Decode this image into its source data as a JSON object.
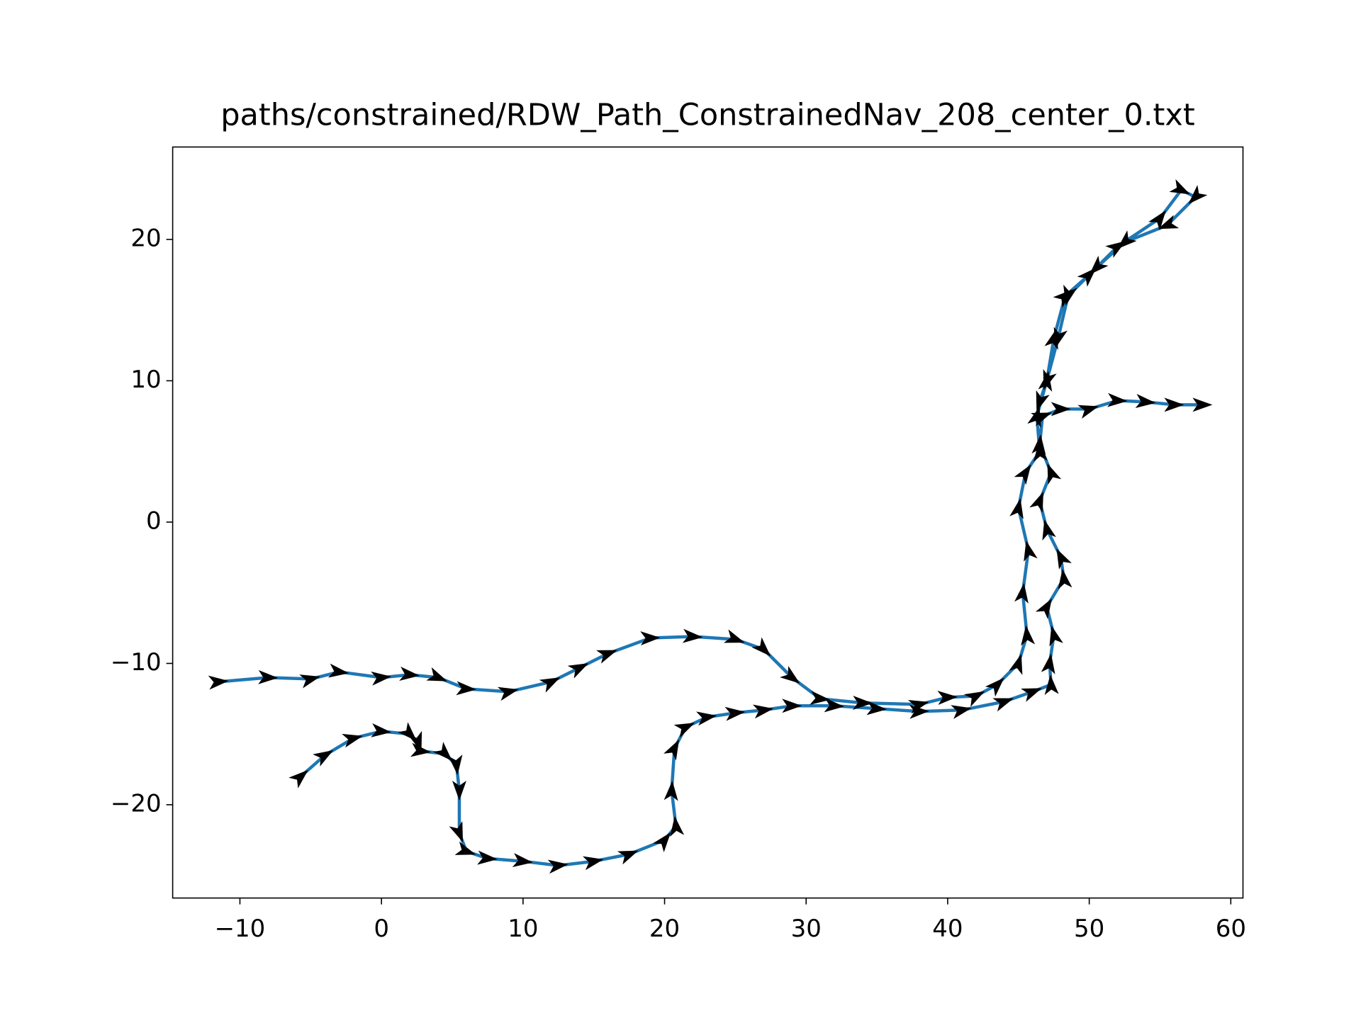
{
  "chart_data": {
    "type": "line",
    "title": "paths/constrained/RDW_Path_ConstrainedNav_208_center_0.txt",
    "xlim": [
      -14.75,
      60.86
    ],
    "ylim": [
      -26.6,
      26.54
    ],
    "xticks": [
      {
        "value": -10,
        "label": "−10"
      },
      0,
      10,
      20,
      30,
      40,
      50,
      60
    ],
    "yticks": [
      {
        "value": -20,
        "label": "−20"
      },
      {
        "value": -10,
        "label": "−10"
      },
      0,
      10,
      20
    ],
    "arrows": true,
    "series": [
      {
        "color": "#1f77b4",
        "x": [
          -5.7,
          -4,
          -2,
          0,
          2,
          2.6,
          2.8,
          4.5,
          5.3,
          5.5,
          5.5,
          6,
          7.5,
          10,
          12.5,
          15,
          17.5,
          20,
          20.8,
          20.5,
          20.7,
          21.5,
          23,
          25,
          27,
          29,
          32,
          35,
          38,
          41,
          44,
          46,
          47.3,
          47.2,
          47.5,
          47,
          48.2,
          48,
          47,
          46.5,
          47.3,
          46.5,
          46.7,
          48,
          50,
          52,
          54,
          56,
          58,
          null,
          -11.5,
          -8,
          -5,
          -3,
          0,
          2,
          4,
          6,
          9,
          12,
          14,
          16,
          19,
          22,
          25,
          27,
          29,
          31,
          34,
          38,
          40,
          42,
          43.5,
          45,
          45.6,
          45.3,
          45.7,
          45,
          45.5,
          46.5,
          46.3,
          47,
          47.5,
          48.3,
          50,
          52,
          55,
          56.5,
          57.5,
          55.5,
          52.5,
          50.5,
          48.5,
          47.8,
          47,
          46.5
        ],
        "values": [
          -18,
          -16.5,
          -15.3,
          -14.8,
          -15,
          -15.6,
          -16.2,
          -16.4,
          -17.2,
          -19,
          -22,
          -23.3,
          -23.8,
          -24,
          -24.3,
          -24,
          -23.5,
          -22.5,
          -21.5,
          -19,
          -16,
          -14.5,
          -13.8,
          -13.5,
          -13.3,
          -13,
          -13,
          -13.2,
          -13.4,
          -13.3,
          -12.7,
          -12,
          -11.5,
          -10,
          -8,
          -6,
          -4,
          -2.5,
          -0.5,
          1.5,
          3.5,
          5.5,
          7.5,
          8,
          8,
          8.6,
          8.5,
          8.3,
          8.3,
          null,
          -11.3,
          -11,
          -11.1,
          -10.6,
          -11,
          -10.8,
          -11,
          -11.8,
          -12,
          -11.3,
          -10.3,
          -9.3,
          -8.2,
          -8.1,
          -8.3,
          -9,
          -11,
          -12.5,
          -12.8,
          -12.9,
          -12.4,
          -12.3,
          -11.5,
          -10,
          -8,
          -5,
          -2,
          1,
          3.5,
          5,
          7.5,
          10,
          13,
          16,
          17.5,
          19.5,
          21.5,
          23.5,
          23,
          21,
          19.8,
          18,
          16,
          13,
          10,
          8.5
        ]
      }
    ]
  }
}
